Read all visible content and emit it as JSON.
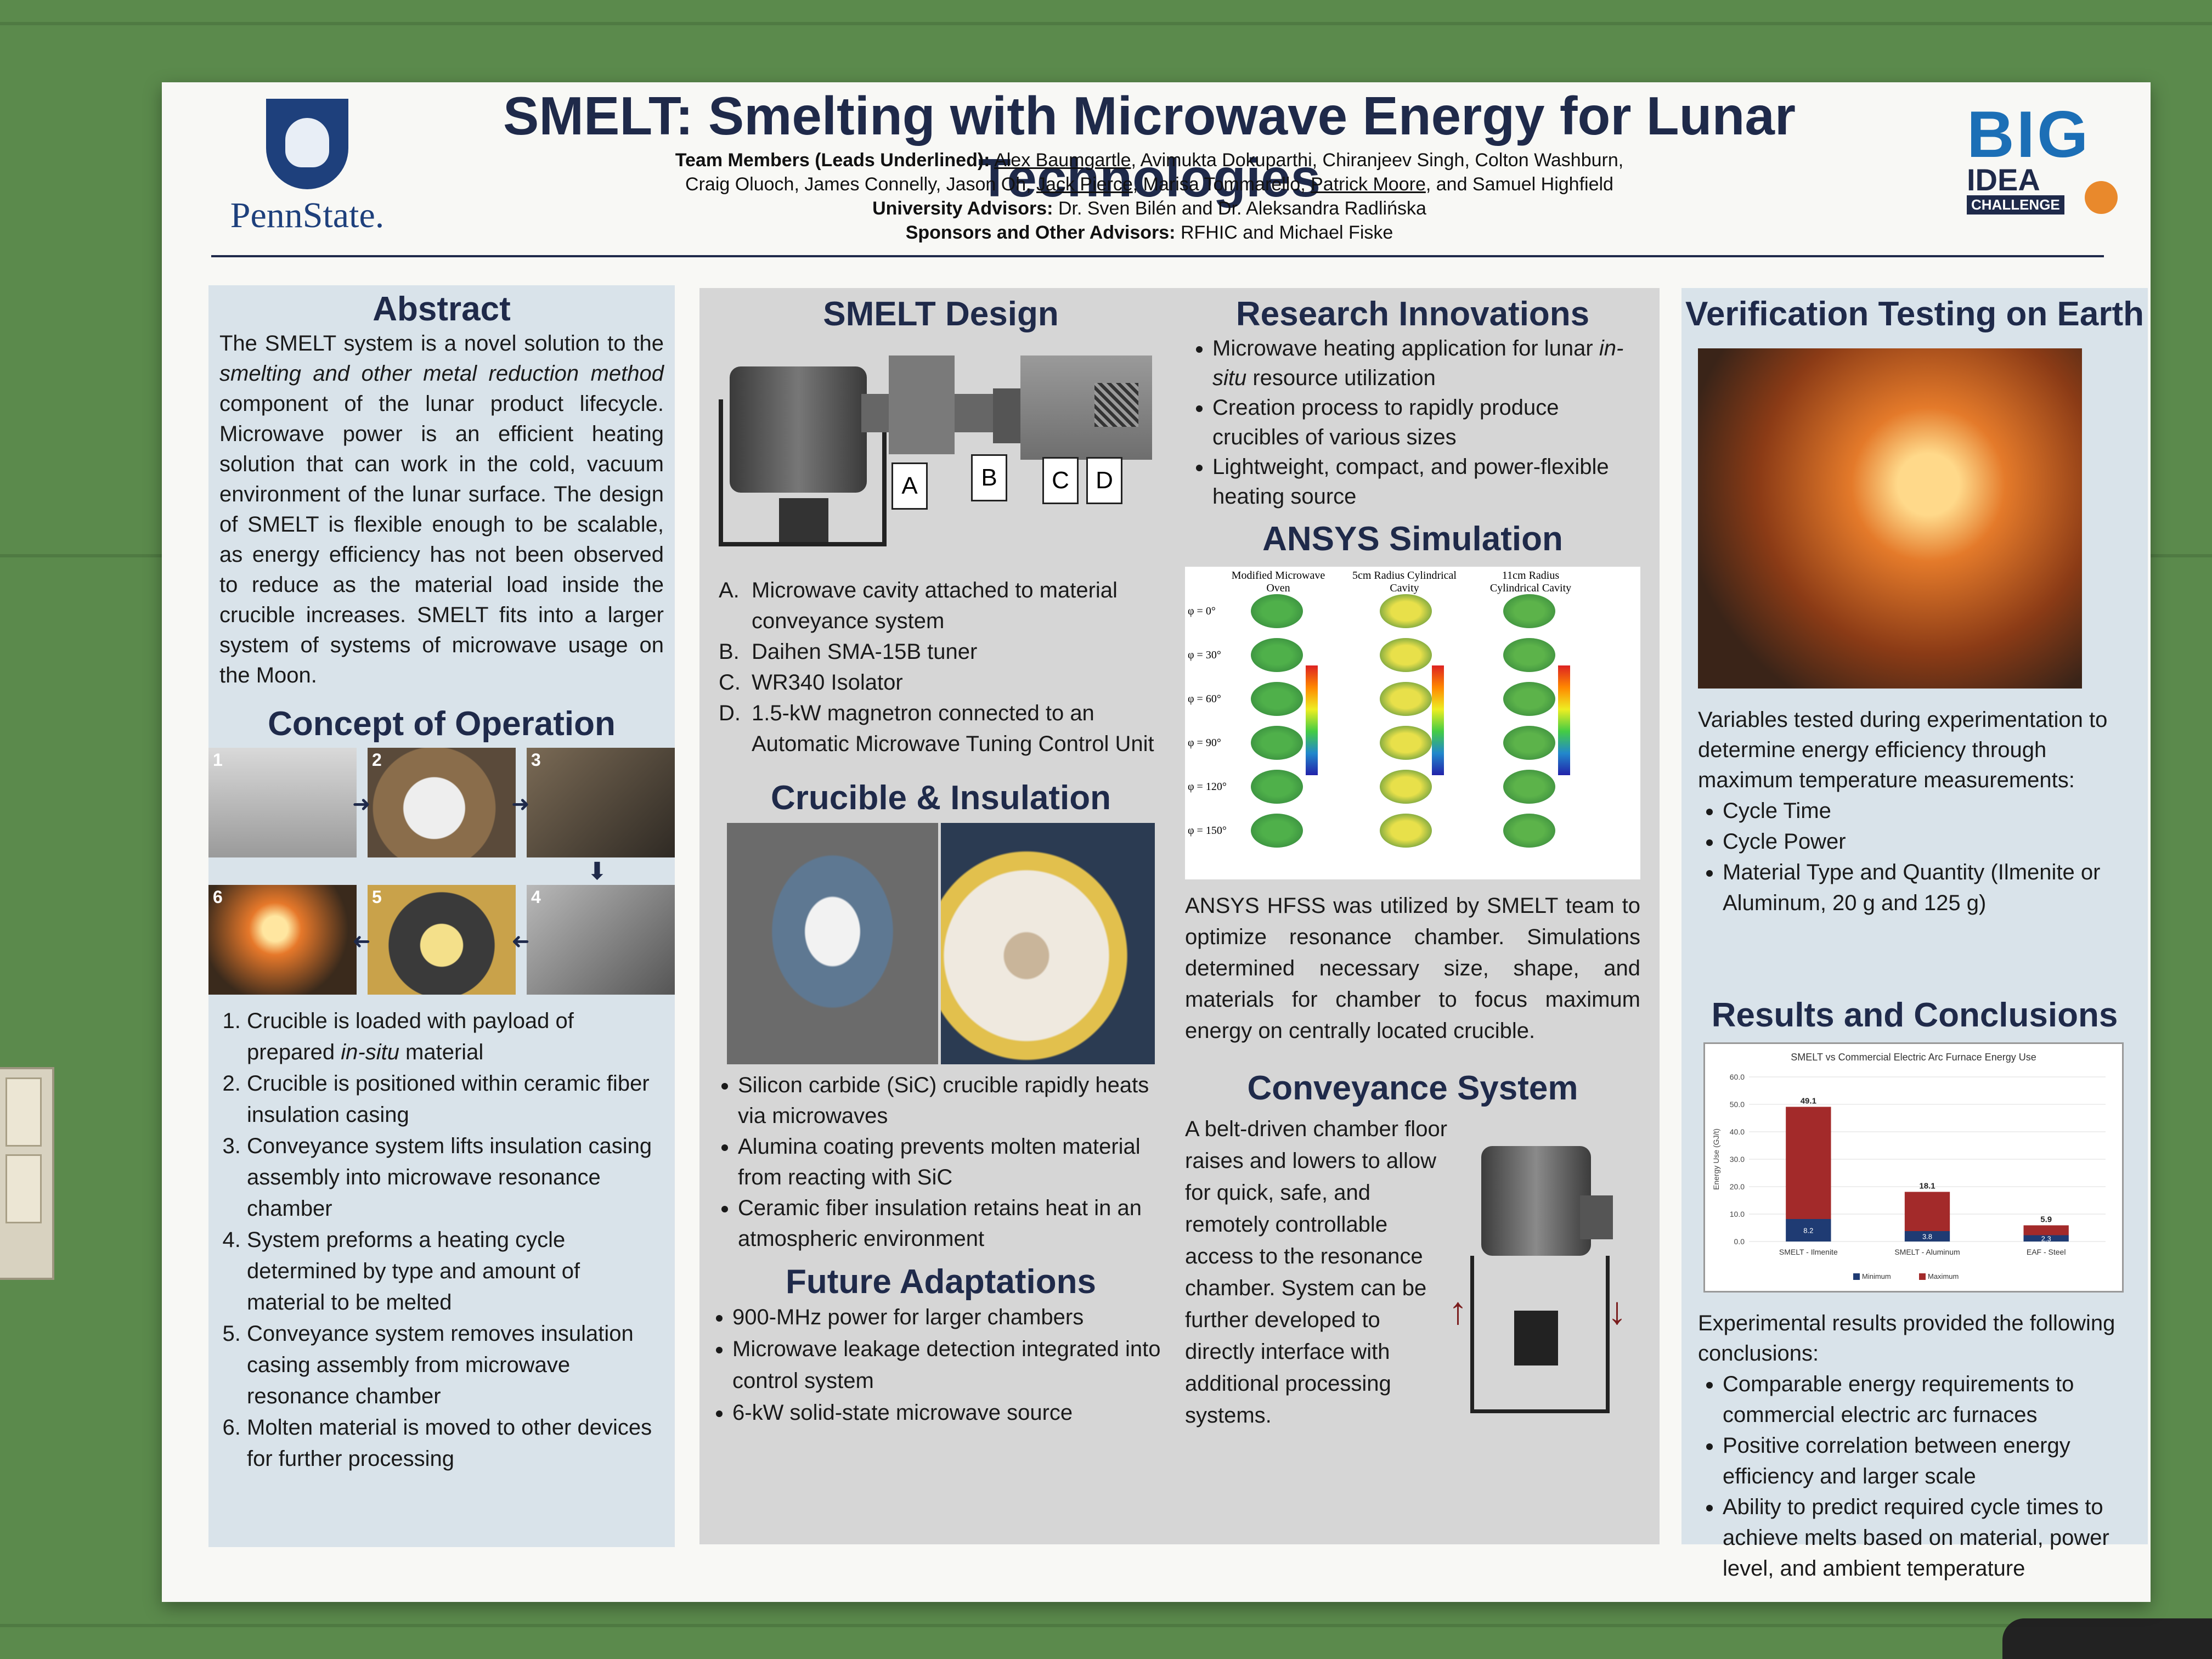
{
  "header": {
    "logo_text": "PennState.",
    "title": "SMELT: Smelting with Microwave Energy for Lunar Technologies",
    "team_label": "Team Members (Leads Underlined):",
    "team_lead_1": "Alex Baumgartle",
    "team_line1_rest": ", Avimukta Dokuparthi, Chiranjeev Singh, Colton Washburn,",
    "team_line2_start": "Craig Oluoch, James Connelly, Jason Oh, ",
    "team_lead_2": "Jack Pierce",
    "team_line2_mid": ", Marisa Tommarello, ",
    "team_lead_3": "Patrick Moore",
    "team_line2_end": ", and Samuel Highfield",
    "advisors_label": "University Advisors:",
    "advisors": " Dr. Sven Bilén and Dr. Aleksandra Radlińska",
    "sponsors_label": "Sponsors and Other Advisors:",
    "sponsors": " RFHIC and Michael Fiske",
    "badge_big": "BIG",
    "badge_idea": "IDEA",
    "badge_challenge": "CHALLENGE"
  },
  "abstract": {
    "heading": "Abstract",
    "p1": "The SMELT system is a novel solution to the ",
    "p1_em": "smelting and other metal reduction method",
    "p1_rest": " component of the lunar product lifecycle. Microwave power is an efficient heating solution that can work in the cold, vacuum environment of the lunar surface. The design of SMELT is flexible enough to be scalable, as energy efficiency has not been observed to reduce as the material load inside the crucible increases. SMELT fits into a larger system of systems of microwave usage on the Moon."
  },
  "concept": {
    "heading": "Concept of Operation",
    "photo_numbers": [
      "1",
      "2",
      "3",
      "4",
      "5",
      "6"
    ],
    "steps": [
      {
        "text": "Crucible is loaded with payload of prepared ",
        "em": "in-situ",
        "rest": " material"
      },
      {
        "text": "Crucible is positioned within ceramic fiber insulation casing",
        "em": "",
        "rest": ""
      },
      {
        "text": "Conveyance system lifts insulation casing assembly into microwave resonance chamber",
        "em": "",
        "rest": ""
      },
      {
        "text": "System preforms a heating cycle determined by type and amount of material to be melted",
        "em": "",
        "rest": ""
      },
      {
        "text": "Conveyance system removes insulation casing assembly from microwave resonance chamber",
        "em": "",
        "rest": ""
      },
      {
        "text": "Molten material is moved to other devices for further processing",
        "em": "",
        "rest": ""
      }
    ]
  },
  "design": {
    "heading": "SMELT Design",
    "callouts": [
      "A",
      "B",
      "C",
      "D"
    ],
    "items": [
      {
        "letter": "A.",
        "text": "Microwave cavity attached to material conveyance system"
      },
      {
        "letter": "B.",
        "text": "Daihen SMA-15B tuner"
      },
      {
        "letter": "C.",
        "text": "WR340 Isolator"
      },
      {
        "letter": "D.",
        "text": "1.5-kW magnetron connected to an Automatic Microwave Tuning Control Unit"
      }
    ]
  },
  "crucible": {
    "heading": "Crucible & Insulation",
    "bullets": [
      "Silicon carbide (SiC) crucible rapidly heats via microwaves",
      "Alumina coating prevents molten material from reacting with SiC",
      "Ceramic fiber insulation retains heat in an atmospheric environment"
    ]
  },
  "future": {
    "heading": "Future Adaptations",
    "bullets": [
      "900-MHz power for larger chambers",
      "Microwave leakage detection integrated into control system",
      "6-kW solid-state microwave source"
    ]
  },
  "innovations": {
    "heading": "Research Innovations",
    "bullets": [
      {
        "text": "Microwave heating application for lunar ",
        "em": "in-situ",
        "rest": " resource utilization"
      },
      {
        "text": "Creation process to rapidly produce crucibles of various sizes",
        "em": "",
        "rest": ""
      },
      {
        "text": "Lightweight, compact, and power-flexible heating source",
        "em": "",
        "rest": ""
      }
    ]
  },
  "ansys": {
    "heading": "ANSYS Simulation",
    "columns": [
      "Modified Microwave Oven",
      "5cm Radius Cylindrical Cavity",
      "11cm Radius Cylindrical Cavity"
    ],
    "angles": [
      "φ = 0°",
      "φ = 30°",
      "φ = 60°",
      "φ = 90°",
      "φ = 120°",
      "φ = 150°"
    ],
    "text": "ANSYS HFSS was utilized by SMELT team to optimize resonance chamber. Simulations determined necessary size, shape, and materials for chamber to focus maximum energy on centrally located crucible."
  },
  "conveyance": {
    "heading": "Conveyance System",
    "text": "A belt-driven chamber floor raises and lowers to allow for quick, safe, and remotely controllable access to the resonance chamber. System can be further developed to directly interface with additional processing systems."
  },
  "verification": {
    "heading": "Verification Testing on Earth",
    "intro": "Variables tested during experimentation to determine energy efficiency through maximum temperature measurements:",
    "bullets": [
      "Cycle Time",
      "Cycle Power",
      "Material Type and Quantity (Ilmenite or Aluminum, 20 g and 125 g)"
    ]
  },
  "results": {
    "heading": "Results and Conclusions",
    "intro": "Experimental results provided the following conclusions:",
    "bullets": [
      "Comparable energy requirements to commercial electric arc furnaces",
      "Positive correlation between energy efficiency and larger scale",
      "Ability to predict required cycle times to achieve melts based on material, power level, and ambient temperature"
    ]
  },
  "chart_data": {
    "type": "bar",
    "title": "SMELT vs Commercial Electric Arc Furnace Energy Use",
    "ylabel": "Energy Use (GJ/t)",
    "xlabel": "",
    "ylim": [
      0,
      60
    ],
    "yticks": [
      "0.0",
      "10.0",
      "20.0",
      "30.0",
      "40.0",
      "50.0",
      "60.0"
    ],
    "categories": [
      "SMELT - Ilmenite",
      "SMELT - Aluminum",
      "EAF - Steel"
    ],
    "series": [
      {
        "name": "Minimum",
        "values": [
          8.2,
          3.8,
          2.3
        ],
        "color": "#1f3b73"
      },
      {
        "name": "Maximum",
        "values": [
          49.1,
          18.1,
          5.9
        ],
        "color": "#a32a2a"
      }
    ],
    "grid": true,
    "legend": "bottom"
  }
}
